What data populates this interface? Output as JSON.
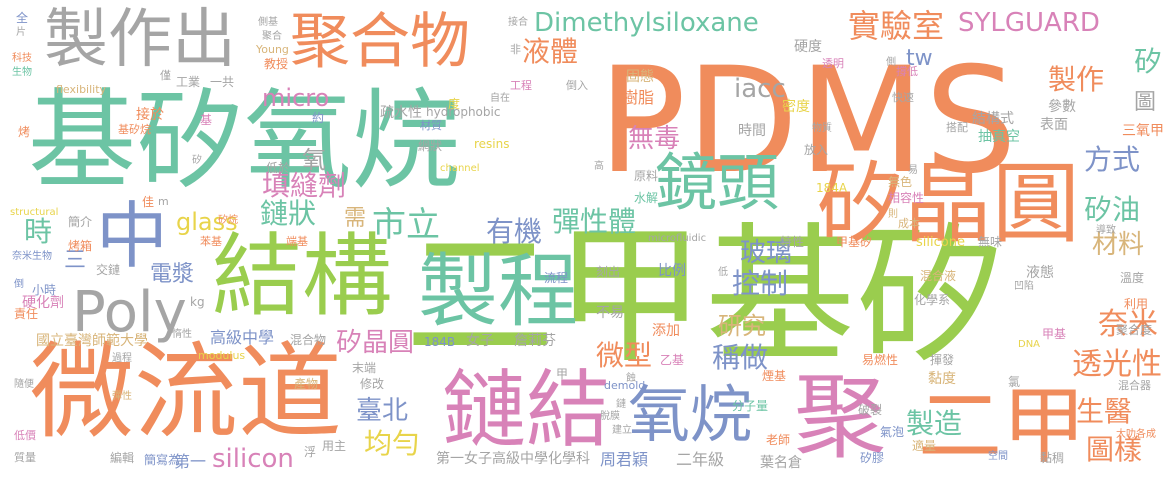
{
  "colors": {
    "orange": "#F08C5C",
    "green": "#9ACD4E",
    "teal": "#6CC4A4",
    "pink": "#D882B8",
    "blue": "#7E93C8",
    "gray": "#A5A5A5",
    "tan": "#D8B57A",
    "yellow": "#E8D44A",
    "background": "#FFFFFF"
  },
  "words": [
    {
      "text": "PDMS",
      "color": "orange"
    },
    {
      "text": "基矽氧烷",
      "color": "teal"
    },
    {
      "text": "二甲基矽",
      "color": "green"
    },
    {
      "text": "微流道",
      "color": "orange"
    },
    {
      "text": "結構",
      "color": "green"
    },
    {
      "text": "製程",
      "color": "teal"
    },
    {
      "text": "製作出",
      "color": "gray"
    },
    {
      "text": "聚合物",
      "color": "orange"
    },
    {
      "text": "中",
      "color": "blue"
    },
    {
      "text": "Poly",
      "color": "gray"
    },
    {
      "text": "鏈結",
      "color": "pink"
    },
    {
      "text": "聚",
      "color": "pink"
    },
    {
      "text": "二甲",
      "color": "orange"
    },
    {
      "text": "矽晶圓",
      "color": "orange"
    },
    {
      "text": "鏡頭",
      "color": "teal"
    },
    {
      "text": "氧烷",
      "color": "blue"
    },
    {
      "text": "Dimethylsiloxane",
      "color": "teal"
    },
    {
      "text": "SYLGUARD",
      "color": "pink"
    },
    {
      "text": "實驗室",
      "color": "orange"
    },
    {
      "text": "液體",
      "color": "orange"
    },
    {
      "text": "micro",
      "color": "pink"
    },
    {
      "text": "iacc",
      "color": "gray"
    },
    {
      "text": "tw",
      "color": "blue"
    },
    {
      "text": "無毒",
      "color": "pink"
    },
    {
      "text": "製作",
      "color": "orange"
    },
    {
      "text": "矽",
      "color": "teal"
    },
    {
      "text": "圖",
      "color": "gray"
    },
    {
      "text": "市立",
      "color": "teal"
    },
    {
      "text": "有機",
      "color": "blue"
    },
    {
      "text": "彈性體",
      "color": "teal"
    },
    {
      "text": "glass",
      "color": "yellow"
    },
    {
      "text": "填縫劑",
      "color": "pink"
    },
    {
      "text": "鏈狀",
      "color": "teal"
    },
    {
      "text": "需",
      "color": "tan"
    },
    {
      "text": "時",
      "color": "teal"
    },
    {
      "text": "方式",
      "color": "blue"
    },
    {
      "text": "矽油",
      "color": "teal"
    },
    {
      "text": "材料",
      "color": "tan"
    },
    {
      "text": "三",
      "color": "blue"
    },
    {
      "text": "電漿",
      "color": "blue"
    },
    {
      "text": "玻璃",
      "color": "blue"
    },
    {
      "text": "控制",
      "color": "blue"
    },
    {
      "text": "研究",
      "color": "tan"
    },
    {
      "text": "微型",
      "color": "orange"
    },
    {
      "text": "稱做",
      "color": "blue"
    },
    {
      "text": "透光性",
      "color": "orange"
    },
    {
      "text": "奈米",
      "color": "orange"
    },
    {
      "text": "矽晶圓",
      "color": "pink"
    },
    {
      "text": "臺北",
      "color": "blue"
    },
    {
      "text": "均勻",
      "color": "yellow"
    },
    {
      "text": "製造",
      "color": "teal"
    },
    {
      "text": "silicon",
      "color": "pink"
    },
    {
      "text": "生醫",
      "color": "orange"
    },
    {
      "text": "圖樣",
      "color": "orange"
    },
    {
      "text": "高級中學",
      "color": "blue"
    },
    {
      "text": "第一女子高級中學化學科",
      "color": "gray"
    },
    {
      "text": "周君穎",
      "color": "blue"
    },
    {
      "text": "二年級",
      "color": "gray"
    },
    {
      "text": "葉名倉",
      "color": "gray"
    },
    {
      "text": "第一",
      "color": "blue"
    },
    {
      "text": "國立臺灣師範大學",
      "color": "tan"
    },
    {
      "text": "氧",
      "color": "gray"
    },
    {
      "text": "硬化劑",
      "color": "pink"
    },
    {
      "text": "簡寫為",
      "color": "blue"
    },
    {
      "text": "流程",
      "color": "blue"
    },
    {
      "text": "比例",
      "color": "blue"
    },
    {
      "text": "添加",
      "color": "orange"
    },
    {
      "text": "不易",
      "color": "gray"
    },
    {
      "text": "刻出",
      "color": "gray"
    },
    {
      "text": "疏水性",
      "color": "gray"
    },
    {
      "text": "hydrophobic",
      "color": "gray"
    },
    {
      "text": "樹脂",
      "color": "orange"
    },
    {
      "text": "固態",
      "color": "tan"
    },
    {
      "text": "密度",
      "color": "yellow"
    },
    {
      "text": "時間",
      "color": "gray"
    },
    {
      "text": "結構式",
      "color": "gray"
    },
    {
      "text": "抽真空",
      "color": "teal"
    },
    {
      "text": "表面",
      "color": "gray"
    },
    {
      "text": "參數",
      "color": "gray"
    },
    {
      "text": "三氧甲",
      "color": "orange"
    },
    {
      "text": "放入",
      "color": "gray"
    },
    {
      "text": "原料",
      "color": "gray"
    },
    {
      "text": "水解",
      "color": "teal"
    },
    {
      "text": "無色",
      "color": "tan"
    },
    {
      "text": "相容性",
      "color": "pink"
    },
    {
      "text": "成本",
      "color": "tan"
    },
    {
      "text": "184A",
      "color": "yellow"
    },
    {
      "text": "silicone",
      "color": "yellow"
    },
    {
      "text": "無味",
      "color": "gray"
    },
    {
      "text": "甲基矽",
      "color": "orange"
    },
    {
      "text": "特性",
      "color": "gray"
    },
    {
      "text": "混合液",
      "color": "tan"
    },
    {
      "text": "液態",
      "color": "gray"
    },
    {
      "text": "化學系",
      "color": "gray"
    },
    {
      "text": "溫度",
      "color": "gray"
    },
    {
      "text": "利用",
      "color": "orange"
    },
    {
      "text": "聚合度",
      "color": "gray"
    },
    {
      "text": "甲基",
      "color": "pink"
    },
    {
      "text": "易燃性",
      "color": "orange"
    },
    {
      "text": "揮發",
      "color": "gray"
    },
    {
      "text": "黏度",
      "color": "tan"
    },
    {
      "text": "氯",
      "color": "gray"
    },
    {
      "text": "混合器",
      "color": "gray"
    },
    {
      "text": "分子量",
      "color": "teal"
    },
    {
      "text": "破裂",
      "color": "gray"
    },
    {
      "text": "氣泡",
      "color": "blue"
    },
    {
      "text": "適量",
      "color": "tan"
    },
    {
      "text": "老師",
      "color": "orange"
    },
    {
      "text": "矽膠",
      "color": "blue"
    },
    {
      "text": "黏稠",
      "color": "gray"
    },
    {
      "text": "空間",
      "color": "blue"
    },
    {
      "text": "大叻各成",
      "color": "orange"
    },
    {
      "text": "184B",
      "color": "blue"
    },
    {
      "text": "女子",
      "color": "gray"
    },
    {
      "text": "詹莉芬",
      "color": "gray"
    },
    {
      "text": "混合物",
      "color": "gray"
    },
    {
      "text": "末端",
      "color": "gray"
    },
    {
      "text": "修改",
      "color": "gray"
    },
    {
      "text": "產物",
      "color": "tan"
    },
    {
      "text": "用主",
      "color": "gray"
    },
    {
      "text": "浮",
      "color": "gray"
    },
    {
      "text": "編輯",
      "color": "gray"
    },
    {
      "text": "低價",
      "color": "pink"
    },
    {
      "text": "質量",
      "color": "gray"
    },
    {
      "text": "隨便",
      "color": "gray"
    },
    {
      "text": "彈性",
      "color": "tan"
    },
    {
      "text": "過程",
      "color": "gray"
    },
    {
      "text": "責任",
      "color": "orange"
    },
    {
      "text": "惰性",
      "color": "gray"
    },
    {
      "text": "modulus",
      "color": "yellow"
    },
    {
      "text": "kg",
      "color": "gray"
    },
    {
      "text": "小時",
      "color": "blue"
    },
    {
      "text": "烤箱",
      "color": "orange"
    },
    {
      "text": "簡介",
      "color": "gray"
    },
    {
      "text": "structural",
      "color": "yellow"
    },
    {
      "text": "交鏈",
      "color": "gray"
    },
    {
      "text": "奈米生物",
      "color": "blue"
    },
    {
      "text": "端基",
      "color": "orange"
    },
    {
      "text": "苯基",
      "color": "orange"
    },
    {
      "text": "低於",
      "color": "gray"
    },
    {
      "text": "接於",
      "color": "orange"
    },
    {
      "text": "基矽烷",
      "color": "orange"
    },
    {
      "text": "工業",
      "color": "gray"
    },
    {
      "text": "一共",
      "color": "gray"
    },
    {
      "text": "教授",
      "color": "orange"
    },
    {
      "text": "Young",
      "color": "tan"
    },
    {
      "text": "flexibility",
      "color": "tan"
    },
    {
      "text": "硬度",
      "color": "gray"
    },
    {
      "text": "透明",
      "color": "pink"
    },
    {
      "text": "快速",
      "color": "gray"
    },
    {
      "text": "撐低",
      "color": "pink"
    },
    {
      "text": "搭配",
      "color": "gray"
    },
    {
      "text": "工程",
      "color": "pink"
    },
    {
      "text": "倒入",
      "color": "gray"
    },
    {
      "text": "網狀",
      "color": "gray"
    },
    {
      "text": "材質",
      "color": "blue"
    },
    {
      "text": "resins",
      "color": "yellow"
    },
    {
      "text": "channel",
      "color": "yellow"
    },
    {
      "text": "microfluidic",
      "color": "gray"
    },
    {
      "text": "乙基",
      "color": "pink"
    },
    {
      "text": "煙基",
      "color": "orange"
    },
    {
      "text": "demold",
      "color": "blue"
    },
    {
      "text": "DNA",
      "color": "yellow"
    },
    {
      "text": "導致",
      "color": "gray"
    },
    {
      "text": "凹陷",
      "color": "gray"
    },
    {
      "text": "全",
      "color": "blue"
    },
    {
      "text": "片",
      "color": "gray"
    },
    {
      "text": "科技",
      "color": "orange"
    },
    {
      "text": "生物",
      "color": "teal"
    },
    {
      "text": "烤",
      "color": "orange"
    },
    {
      "text": "基",
      "color": "pink"
    },
    {
      "text": "佳",
      "color": "orange"
    },
    {
      "text": "m",
      "color": "gray"
    },
    {
      "text": "僅",
      "color": "gray"
    },
    {
      "text": "約",
      "color": "blue"
    },
    {
      "text": "度",
      "color": "yellow"
    },
    {
      "text": "自在",
      "color": "gray"
    },
    {
      "text": "接合",
      "color": "gray"
    },
    {
      "text": "非",
      "color": "gray"
    },
    {
      "text": "側基",
      "color": "gray"
    },
    {
      "text": "聚合",
      "color": "gray"
    },
    {
      "text": "高",
      "color": "gray"
    },
    {
      "text": "易",
      "color": "gray"
    },
    {
      "text": "側",
      "color": "gray"
    },
    {
      "text": "則",
      "color": "tan"
    },
    {
      "text": "低",
      "color": "gray"
    },
    {
      "text": "倒",
      "color": "blue"
    },
    {
      "text": "鏈",
      "color": "gray"
    },
    {
      "text": "脫膜",
      "color": "gray"
    },
    {
      "text": "建立",
      "color": "gray"
    },
    {
      "text": "物質",
      "color": "gray"
    },
    {
      "text": "矽烷",
      "color": "orange"
    },
    {
      "text": "矽",
      "color": "gray"
    },
    {
      "text": "甲",
      "color": "gray"
    },
    {
      "text": "蝕",
      "color": "gray"
    }
  ]
}
